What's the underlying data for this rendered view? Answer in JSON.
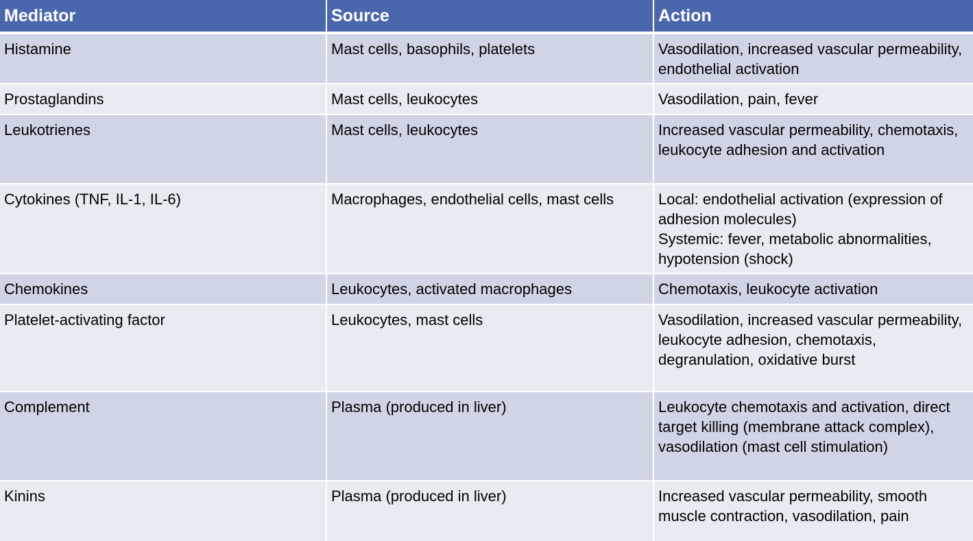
{
  "table": {
    "headers": [
      "Mediator",
      "Source",
      "Action"
    ],
    "rows": [
      {
        "mediator": "Histamine",
        "source": "Mast cells, basophils, platelets",
        "action": "Vasodilation, increased vascular permeability, endothelial activation"
      },
      {
        "mediator": "Prostaglandins",
        "source": "Mast cells, leukocytes",
        "action": "Vasodilation, pain, fever"
      },
      {
        "mediator": "Leukotrienes",
        "source": "Mast cells, leukocytes",
        "action": "Increased vascular permeability, chemotaxis, leukocyte adhesion and activation"
      },
      {
        "mediator": "Cytokines (TNF, IL-1, IL-6)",
        "source": "Macrophages, endothelial cells, mast cells",
        "action": "Local: endothelial activation (expression of adhesion molecules)",
        "action_2": "Systemic: fever, metabolic abnormalities, hypotension (shock)"
      },
      {
        "mediator": "Chemokines",
        "source": "Leukocytes, activated macrophages",
        "action": "Chemotaxis, leukocyte activation"
      },
      {
        "mediator": "Platelet-activating factor",
        "source": "Leukocytes, mast cells",
        "action": "Vasodilation, increased vascular permeability, leukocyte adhesion, chemotaxis, degranulation, oxidative burst"
      },
      {
        "mediator": "Complement",
        "source": "Plasma (produced in liver)",
        "action": "Leukocyte chemotaxis and activation, direct target killing (membrane attack complex), vasodilation (mast cell stimulation)"
      },
      {
        "mediator": "Kinins",
        "source": "Plasma (produced in liver)",
        "action": "Increased vascular permeability, smooth muscle contraction, vasodilation, pain"
      }
    ]
  },
  "colors": {
    "header_bg": "#4a66ac",
    "row_odd_bg": "#d0d5e5",
    "row_even_bg": "#e9ebf2"
  }
}
